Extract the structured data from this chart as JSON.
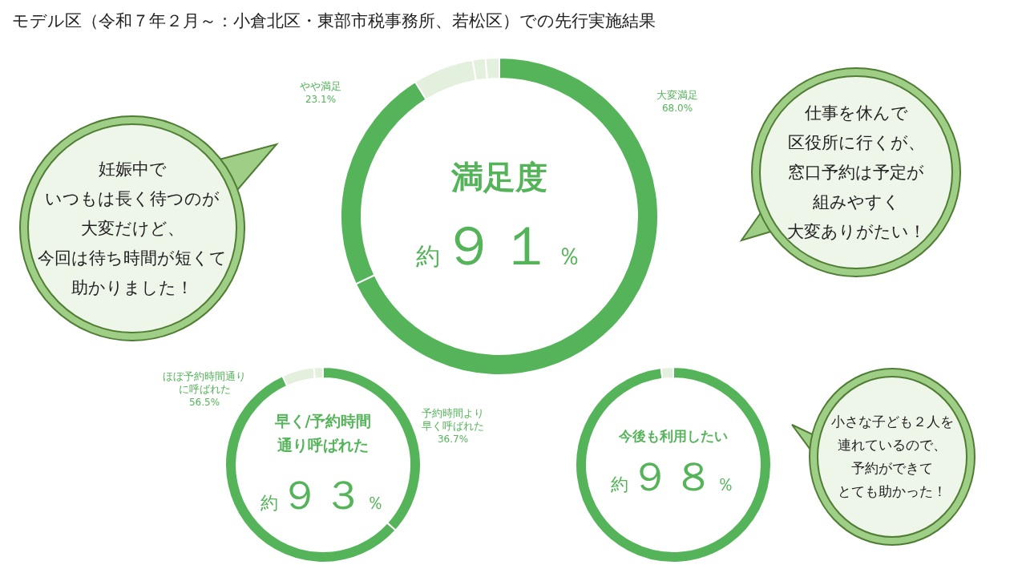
{
  "chart_data": [
    {
      "type": "donut",
      "title": "モデル区（令和７年２月～：小倉北区・東部市税事務所、若松区）での先行実施結果",
      "subtitle": "満足度",
      "categories": [
        "大変満足",
        "やや満足",
        null,
        null,
        null
      ],
      "values": [
        68.0,
        23.1,
        6.2,
        1.3,
        1.4
      ],
      "value_labels": [
        "68.0%",
        "23.1%",
        null,
        null,
        null
      ],
      "colors": [
        "#55b45a",
        "#55b45a",
        "#e3f0dd",
        "#e3f0dd",
        "#e3f0dd"
      ],
      "annotations": [
        "約９１％",
        "妊娠中でいつもは長く待つのが大変だけど、今回は待ち時間が短くて助かりました！",
        "仕事を休んで区役所に行くが、窓口予約は予定が組みやすく大変ありがたい！"
      ]
    },
    {
      "type": "donut",
      "title": "早く/予約時間通り呼ばれた",
      "categories": [
        "予約時間より早く呼ばれた",
        "ほぼ予約時間通りに呼ばれた",
        null,
        null
      ],
      "values": [
        36.7,
        56.5,
        5.3,
        1.5
      ],
      "value_labels": [
        "36.7%",
        "56.5%",
        null,
        null
      ],
      "colors": [
        "#55b45a",
        "#55b45a",
        "#e3f0dd",
        "#e3f0dd"
      ],
      "annotations": [
        "約９３％"
      ]
    },
    {
      "type": "donut",
      "title": "今後も利用したい",
      "categories": [
        null,
        null
      ],
      "values": [
        98,
        2
      ],
      "colors": [
        "#55b45a",
        "#e3f0dd"
      ],
      "annotations": [
        "約９８％",
        "小さな子ども２人を連れているので、予約ができてとても助かった！"
      ]
    }
  ]
}
